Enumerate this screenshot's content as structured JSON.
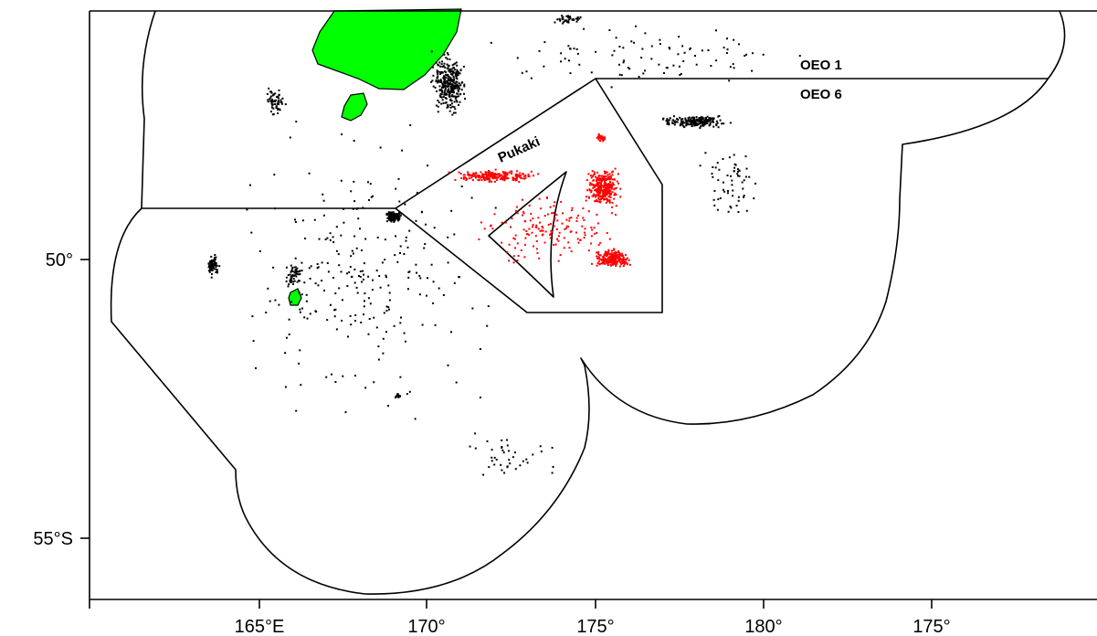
{
  "map": {
    "x_tick_labels": [
      "165°E",
      "170°",
      "175°",
      "180°",
      "175°"
    ],
    "y_tick_labels": [
      "50°",
      "55°S"
    ],
    "region_labels": {
      "oeo1": "OEO 1",
      "oeo6": "OEO 6",
      "pukaki": "Pukaki"
    },
    "colors": {
      "land": "#00ff00",
      "records_outside": "#000000",
      "records_pukaki": "#ff0000",
      "boundary": "#000000"
    }
  }
}
